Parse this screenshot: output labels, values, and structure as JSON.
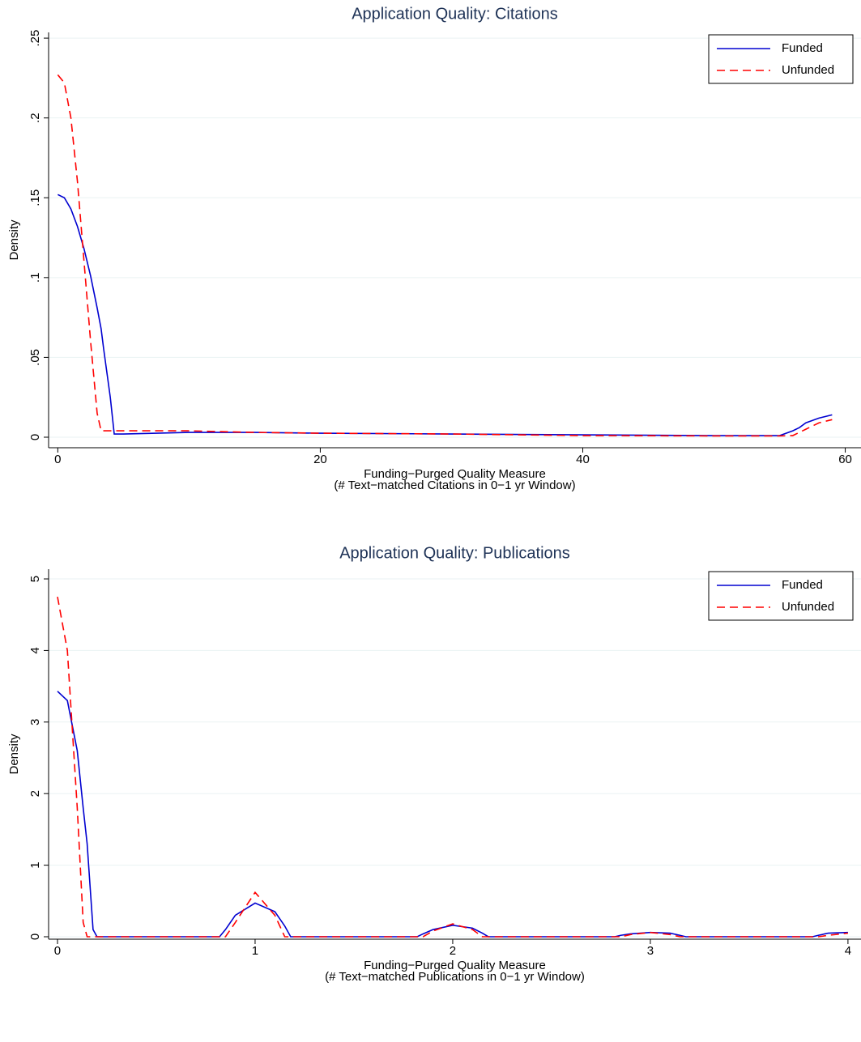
{
  "chart_data": [
    {
      "type": "line",
      "title": "Application Quality: Citations",
      "xlabel": [
        "Funding−Purged Quality Measure",
        "(# Text−matched Citations in 0−1 yr Window)"
      ],
      "ylabel": "Density",
      "x": [
        0,
        0.5,
        1,
        1.5,
        2,
        2.5,
        3,
        3.3,
        3.5,
        4,
        4.3,
        5,
        10,
        15,
        20,
        30,
        40,
        50,
        55,
        56,
        56.5,
        57,
        58,
        59
      ],
      "series": [
        {
          "name": "Funded",
          "color": "#0000d0",
          "dashed": false,
          "values": [
            0.152,
            0.15,
            0.143,
            0.132,
            0.118,
            0.101,
            0.081,
            0.068,
            0.055,
            0.025,
            0.002,
            0.002,
            0.003,
            0.003,
            0.0025,
            0.002,
            0.0015,
            0.001,
            0.001,
            0.004,
            0.006,
            0.009,
            0.012,
            0.014
          ]
        },
        {
          "name": "Unfunded",
          "color": "#ff0000",
          "dashed": true,
          "values": [
            0.227,
            0.222,
            0.2,
            0.16,
            0.11,
            0.06,
            0.015,
            0.004,
            0.004,
            0.004,
            0.004,
            0.004,
            0.004,
            0.003,
            0.0025,
            0.002,
            0.001,
            0.0008,
            0.0008,
            0.001,
            0.003,
            0.005,
            0.009,
            0.011
          ]
        }
      ],
      "xlim": [
        -0.7,
        61.2
      ],
      "ylim": [
        -0.0066,
        0.2536
      ],
      "xticks": [
        0,
        20,
        40,
        60
      ],
      "yticks": [
        0,
        {
          "value": 0.05,
          "label": ".05"
        },
        {
          "value": 0.1,
          "label": ".1"
        },
        {
          "value": 0.15,
          "label": ".15"
        },
        {
          "value": 0.2,
          "label": ".2"
        },
        {
          "value": 0.25,
          "label": ".25"
        }
      ],
      "grid": true,
      "legend": "top-right"
    },
    {
      "type": "line",
      "title": "Application Quality: Publications",
      "xlabel": [
        "Funding−Purged Quality Measure",
        "(# Text−matched Publications in 0−1 yr Window)"
      ],
      "ylabel": "Density",
      "x": [
        0,
        0.05,
        0.1,
        0.13,
        0.15,
        0.18,
        0.2,
        0.82,
        0.85,
        0.9,
        1,
        1.1,
        1.15,
        1.18,
        1.82,
        1.85,
        1.9,
        2,
        2.1,
        2.15,
        2.18,
        2.82,
        2.85,
        2.9,
        3,
        3.1,
        3.15,
        3.18,
        3.82,
        3.85,
        3.9,
        4
      ],
      "series": [
        {
          "name": "Funded",
          "color": "#0000d0",
          "dashed": false,
          "values": [
            3.43,
            3.3,
            2.6,
            1.8,
            1.3,
            0.1,
            0,
            0,
            0.1,
            0.3,
            0.47,
            0.35,
            0.15,
            0,
            0,
            0.04,
            0.1,
            0.16,
            0.12,
            0.05,
            0,
            0,
            0.02,
            0.04,
            0.06,
            0.05,
            0.02,
            0,
            0,
            0.02,
            0.05,
            0.06
          ]
        },
        {
          "name": "Unfunded",
          "color": "#ff0000",
          "dashed": true,
          "values": [
            4.75,
            4.0,
            1.8,
            0.2,
            0,
            0,
            0,
            0,
            0,
            0.2,
            0.62,
            0.3,
            0,
            0,
            0,
            0,
            0.08,
            0.18,
            0.1,
            0,
            0,
            0,
            0,
            0.03,
            0.06,
            0.03,
            0,
            0,
            0,
            0,
            0.02,
            0.05
          ]
        }
      ],
      "xlim": [
        -0.045,
        4.066
      ],
      "ylim": [
        -0.034,
        5.136
      ],
      "xticks": [
        0,
        1,
        2,
        3,
        4
      ],
      "yticks": [
        0,
        1,
        2,
        3,
        4,
        5
      ],
      "grid": true,
      "legend": "top-right"
    }
  ]
}
